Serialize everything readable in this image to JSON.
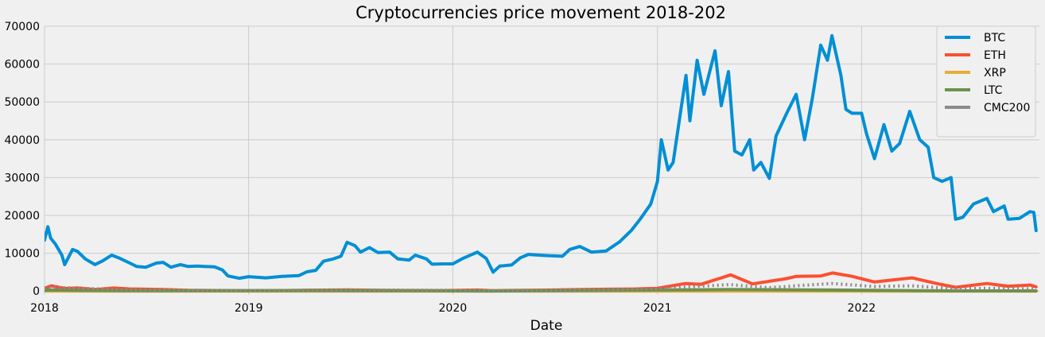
{
  "chart_data": {
    "type": "line",
    "title": "Cryptocurrencies price movement 2018-202",
    "xlabel": "Date",
    "ylabel": "",
    "xlim": [
      "2018-01-01",
      "2022-11-15"
    ],
    "ylim": [
      -1000,
      70000
    ],
    "x_ticks": [
      "2018",
      "2019",
      "2020",
      "2021",
      "2022"
    ],
    "x_tick_dates": [
      "2018-01-01",
      "2019-01-01",
      "2020-01-01",
      "2021-01-01",
      "2022-01-01"
    ],
    "y_ticks": [
      0,
      10000,
      20000,
      30000,
      40000,
      50000,
      60000,
      70000
    ],
    "grid": true,
    "legend_position": "top-right",
    "series": [
      {
        "name": "BTC",
        "color": "#008fd5",
        "style": "solid",
        "points": [
          [
            "2018-01-01",
            13500
          ],
          [
            "2018-01-07",
            17000
          ],
          [
            "2018-01-12",
            14000
          ],
          [
            "2018-01-20",
            12500
          ],
          [
            "2018-02-01",
            9500
          ],
          [
            "2018-02-06",
            7000
          ],
          [
            "2018-02-20",
            11000
          ],
          [
            "2018-03-01",
            10500
          ],
          [
            "2018-03-15",
            8500
          ],
          [
            "2018-04-01",
            7000
          ],
          [
            "2018-04-15",
            8000
          ],
          [
            "2018-05-01",
            9500
          ],
          [
            "2018-05-15",
            8700
          ],
          [
            "2018-06-01",
            7500
          ],
          [
            "2018-06-15",
            6500
          ],
          [
            "2018-07-01",
            6300
          ],
          [
            "2018-07-20",
            7400
          ],
          [
            "2018-08-01",
            7600
          ],
          [
            "2018-08-15",
            6300
          ],
          [
            "2018-09-01",
            7000
          ],
          [
            "2018-09-15",
            6500
          ],
          [
            "2018-10-01",
            6600
          ],
          [
            "2018-11-01",
            6400
          ],
          [
            "2018-11-15",
            5600
          ],
          [
            "2018-11-25",
            4000
          ],
          [
            "2018-12-15",
            3400
          ],
          [
            "2019-01-01",
            3800
          ],
          [
            "2019-02-01",
            3500
          ],
          [
            "2019-03-01",
            3900
          ],
          [
            "2019-04-01",
            4100
          ],
          [
            "2019-04-15",
            5100
          ],
          [
            "2019-05-01",
            5500
          ],
          [
            "2019-05-15",
            7900
          ],
          [
            "2019-06-01",
            8500
          ],
          [
            "2019-06-15",
            9200
          ],
          [
            "2019-06-26",
            12900
          ],
          [
            "2019-07-10",
            12000
          ],
          [
            "2019-07-20",
            10300
          ],
          [
            "2019-08-05",
            11500
          ],
          [
            "2019-08-20",
            10200
          ],
          [
            "2019-09-10",
            10300
          ],
          [
            "2019-09-25",
            8500
          ],
          [
            "2019-10-15",
            8200
          ],
          [
            "2019-10-26",
            9500
          ],
          [
            "2019-11-15",
            8500
          ],
          [
            "2019-11-25",
            7100
          ],
          [
            "2019-12-15",
            7200
          ],
          [
            "2020-01-01",
            7200
          ],
          [
            "2020-01-20",
            8700
          ],
          [
            "2020-02-14",
            10300
          ],
          [
            "2020-03-01",
            8600
          ],
          [
            "2020-03-13",
            5000
          ],
          [
            "2020-03-25",
            6600
          ],
          [
            "2020-04-15",
            6900
          ],
          [
            "2020-05-01",
            8800
          ],
          [
            "2020-05-15",
            9700
          ],
          [
            "2020-06-15",
            9400
          ],
          [
            "2020-07-15",
            9200
          ],
          [
            "2020-07-28",
            11000
          ],
          [
            "2020-08-15",
            11800
          ],
          [
            "2020-09-05",
            10300
          ],
          [
            "2020-10-01",
            10600
          ],
          [
            "2020-10-25",
            13000
          ],
          [
            "2020-11-15",
            16000
          ],
          [
            "2020-12-01",
            19000
          ],
          [
            "2020-12-20",
            23000
          ],
          [
            "2021-01-01",
            29000
          ],
          [
            "2021-01-08",
            40000
          ],
          [
            "2021-01-20",
            32000
          ],
          [
            "2021-01-29",
            34000
          ],
          [
            "2021-02-10",
            46000
          ],
          [
            "2021-02-21",
            57000
          ],
          [
            "2021-02-28",
            45000
          ],
          [
            "2021-03-13",
            61000
          ],
          [
            "2021-03-25",
            52000
          ],
          [
            "2021-04-14",
            63500
          ],
          [
            "2021-04-25",
            49000
          ],
          [
            "2021-05-08",
            58000
          ],
          [
            "2021-05-19",
            37000
          ],
          [
            "2021-06-01",
            36000
          ],
          [
            "2021-06-15",
            40000
          ],
          [
            "2021-06-22",
            32000
          ],
          [
            "2021-07-05",
            34000
          ],
          [
            "2021-07-20",
            29800
          ],
          [
            "2021-08-01",
            41000
          ],
          [
            "2021-08-20",
            47000
          ],
          [
            "2021-09-06",
            52000
          ],
          [
            "2021-09-21",
            40000
          ],
          [
            "2021-10-05",
            51000
          ],
          [
            "2021-10-20",
            65000
          ],
          [
            "2021-11-01",
            61000
          ],
          [
            "2021-11-09",
            67500
          ],
          [
            "2021-11-25",
            57000
          ],
          [
            "2021-12-04",
            48000
          ],
          [
            "2021-12-15",
            47000
          ],
          [
            "2022-01-01",
            47000
          ],
          [
            "2022-01-10",
            41500
          ],
          [
            "2022-01-24",
            35000
          ],
          [
            "2022-02-10",
            44000
          ],
          [
            "2022-02-24",
            37000
          ],
          [
            "2022-03-10",
            39000
          ],
          [
            "2022-03-28",
            47500
          ],
          [
            "2022-04-15",
            40000
          ],
          [
            "2022-04-30",
            38000
          ],
          [
            "2022-05-10",
            30000
          ],
          [
            "2022-05-25",
            29000
          ],
          [
            "2022-06-10",
            30000
          ],
          [
            "2022-06-18",
            19000
          ],
          [
            "2022-07-01",
            19500
          ],
          [
            "2022-07-20",
            23000
          ],
          [
            "2022-08-13",
            24500
          ],
          [
            "2022-08-25",
            21000
          ],
          [
            "2022-09-13",
            22500
          ],
          [
            "2022-09-20",
            19000
          ],
          [
            "2022-10-10",
            19200
          ],
          [
            "2022-10-29",
            21000
          ],
          [
            "2022-11-05",
            20800
          ],
          [
            "2022-11-09",
            16000
          ]
        ]
      },
      {
        "name": "ETH",
        "color": "#fc4f30",
        "style": "solid",
        "points": [
          [
            "2018-01-01",
            760
          ],
          [
            "2018-01-13",
            1400
          ],
          [
            "2018-02-06",
            700
          ],
          [
            "2018-03-01",
            850
          ],
          [
            "2018-04-01",
            400
          ],
          [
            "2018-05-05",
            800
          ],
          [
            "2018-06-01",
            580
          ],
          [
            "2018-08-01",
            420
          ],
          [
            "2018-09-15",
            210
          ],
          [
            "2018-12-15",
            90
          ],
          [
            "2019-03-01",
            140
          ],
          [
            "2019-06-25",
            330
          ],
          [
            "2019-09-01",
            170
          ],
          [
            "2019-12-15",
            130
          ],
          [
            "2020-02-15",
            280
          ],
          [
            "2020-03-13",
            110
          ],
          [
            "2020-06-01",
            240
          ],
          [
            "2020-09-01",
            440
          ],
          [
            "2020-11-20",
            550
          ],
          [
            "2021-01-01",
            740
          ],
          [
            "2021-02-20",
            2000
          ],
          [
            "2021-03-20",
            1800
          ],
          [
            "2021-05-12",
            4300
          ],
          [
            "2021-06-20",
            1900
          ],
          [
            "2021-08-20",
            3300
          ],
          [
            "2021-09-06",
            3900
          ],
          [
            "2021-10-20",
            4000
          ],
          [
            "2021-11-10",
            4800
          ],
          [
            "2021-12-15",
            3900
          ],
          [
            "2022-01-24",
            2400
          ],
          [
            "2022-04-01",
            3500
          ],
          [
            "2022-05-15",
            2000
          ],
          [
            "2022-06-18",
            1000
          ],
          [
            "2022-08-13",
            2000
          ],
          [
            "2022-09-20",
            1300
          ],
          [
            "2022-10-30",
            1600
          ],
          [
            "2022-11-09",
            1100
          ]
        ]
      },
      {
        "name": "XRP",
        "color": "#e5ae38",
        "style": "solid",
        "points": [
          [
            "2018-01-01",
            2.4
          ],
          [
            "2018-01-07",
            3.4
          ],
          [
            "2018-04-01",
            0.5
          ],
          [
            "2019-06-01",
            0.4
          ],
          [
            "2020-06-01",
            0.2
          ],
          [
            "2021-04-14",
            1.9
          ],
          [
            "2022-06-01",
            0.4
          ],
          [
            "2022-11-09",
            0.4
          ]
        ]
      },
      {
        "name": "LTC",
        "color": "#6d904f",
        "style": "solid",
        "points": [
          [
            "2018-01-01",
            230
          ],
          [
            "2018-01-07",
            290
          ],
          [
            "2018-06-01",
            100
          ],
          [
            "2019-06-20",
            140
          ],
          [
            "2020-03-13",
            30
          ],
          [
            "2021-05-10",
            400
          ],
          [
            "2021-11-10",
            280
          ],
          [
            "2022-06-18",
            45
          ],
          [
            "2022-11-09",
            60
          ]
        ]
      },
      {
        "name": "CMC200",
        "color": "#8b8b8b",
        "style": "dotted",
        "points": [
          [
            "2018-01-01",
            800
          ],
          [
            "2018-01-10",
            1000
          ],
          [
            "2018-06-01",
            300
          ],
          [
            "2018-12-15",
            110
          ],
          [
            "2019-06-25",
            300
          ],
          [
            "2020-03-13",
            150
          ],
          [
            "2020-12-01",
            400
          ],
          [
            "2021-01-15",
            700
          ],
          [
            "2021-02-20",
            1100
          ],
          [
            "2021-05-10",
            1700
          ],
          [
            "2021-07-20",
            900
          ],
          [
            "2021-09-05",
            1400
          ],
          [
            "2021-11-10",
            2000
          ],
          [
            "2022-01-24",
            1200
          ],
          [
            "2022-04-01",
            1400
          ],
          [
            "2022-06-18",
            600
          ],
          [
            "2022-08-13",
            750
          ],
          [
            "2022-11-09",
            600
          ]
        ]
      }
    ]
  }
}
